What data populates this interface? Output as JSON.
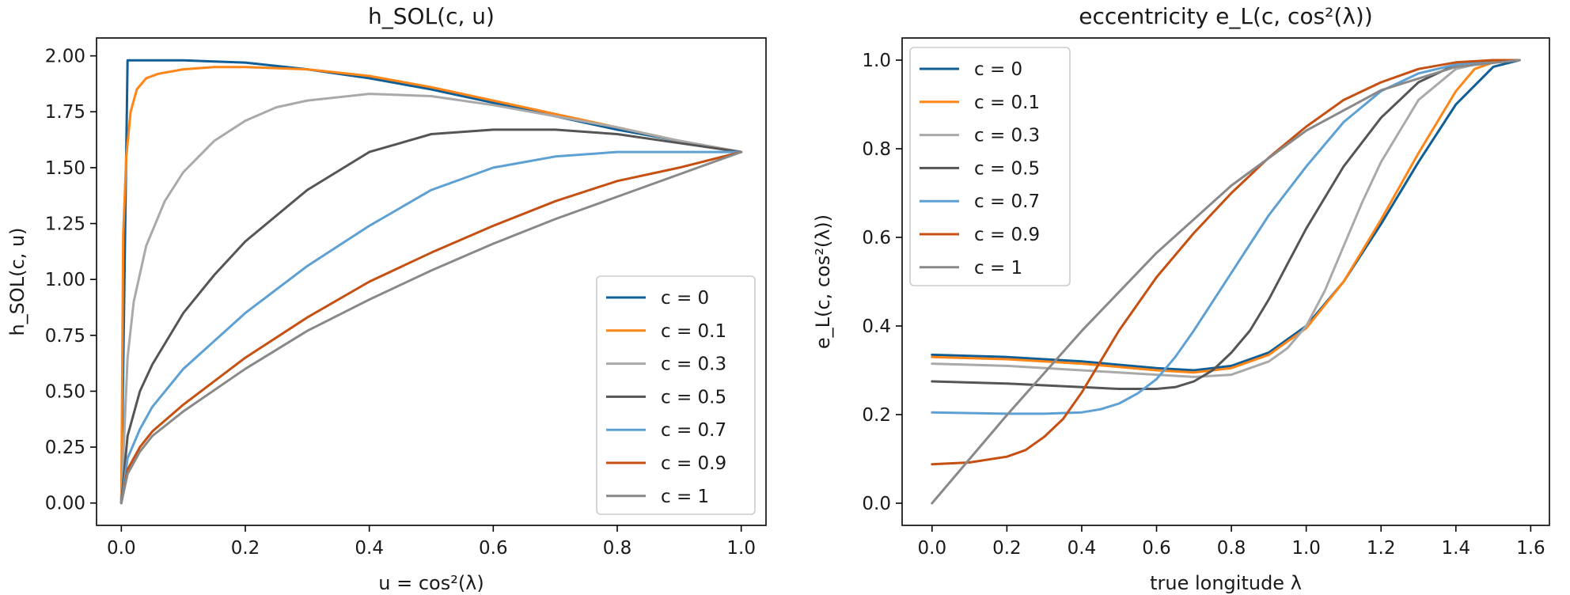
{
  "chart_data": [
    {
      "type": "line",
      "title": "h_SOL(c, u)",
      "xlabel": "u = cos²(λ)",
      "ylabel": "h_SOL(c, u)",
      "xlim": [
        -0.04,
        1.04
      ],
      "ylim": [
        -0.1,
        2.08
      ],
      "xticks": [
        0.0,
        0.2,
        0.4,
        0.6,
        0.8,
        1.0
      ],
      "xtick_labels": [
        "0.0",
        "0.2",
        "0.4",
        "0.6",
        "0.8",
        "1.0"
      ],
      "yticks": [
        0.0,
        0.25,
        0.5,
        0.75,
        1.0,
        1.25,
        1.5,
        1.75,
        2.0
      ],
      "ytick_labels": [
        "0.00",
        "0.25",
        "0.50",
        "0.75",
        "1.00",
        "1.25",
        "1.50",
        "1.75",
        "2.00"
      ],
      "legend_position": "lower right",
      "series": [
        {
          "name": "c = 0",
          "color": "#0f5e95",
          "x": [
            0,
            0.01,
            0.05,
            0.1,
            0.2,
            0.3,
            0.4,
            0.5,
            0.6,
            0.7,
            0.8,
            0.9,
            1.0
          ],
          "y": [
            0,
            1.98,
            1.98,
            1.98,
            1.97,
            1.94,
            1.9,
            1.85,
            1.79,
            1.73,
            1.67,
            1.62,
            1.57
          ]
        },
        {
          "name": "c = 0.1",
          "color": "#ff8517",
          "x": [
            0,
            0.003,
            0.008,
            0.015,
            0.025,
            0.04,
            0.06,
            0.1,
            0.15,
            0.2,
            0.3,
            0.4,
            0.5,
            0.6,
            0.7,
            0.8,
            0.9,
            1.0
          ],
          "y": [
            0,
            1.2,
            1.55,
            1.75,
            1.85,
            1.9,
            1.92,
            1.94,
            1.95,
            1.95,
            1.94,
            1.91,
            1.86,
            1.8,
            1.74,
            1.68,
            1.62,
            1.57
          ]
        },
        {
          "name": "c = 0.3",
          "color": "#a9a9a9",
          "x": [
            0,
            0.01,
            0.02,
            0.04,
            0.07,
            0.1,
            0.15,
            0.2,
            0.25,
            0.3,
            0.4,
            0.5,
            0.6,
            0.7,
            0.8,
            0.9,
            1.0
          ],
          "y": [
            0,
            0.65,
            0.9,
            1.15,
            1.35,
            1.48,
            1.62,
            1.71,
            1.77,
            1.8,
            1.83,
            1.82,
            1.78,
            1.73,
            1.68,
            1.62,
            1.57
          ]
        },
        {
          "name": "c = 0.5",
          "color": "#555555",
          "x": [
            0,
            0.01,
            0.03,
            0.05,
            0.1,
            0.15,
            0.2,
            0.3,
            0.4,
            0.5,
            0.6,
            0.7,
            0.8,
            0.9,
            1.0
          ],
          "y": [
            0,
            0.3,
            0.5,
            0.62,
            0.85,
            1.02,
            1.17,
            1.4,
            1.57,
            1.65,
            1.67,
            1.67,
            1.65,
            1.61,
            1.57
          ]
        },
        {
          "name": "c = 0.7",
          "color": "#5da0d3",
          "x": [
            0,
            0.01,
            0.03,
            0.05,
            0.1,
            0.2,
            0.3,
            0.4,
            0.5,
            0.6,
            0.7,
            0.8,
            0.9,
            1.0
          ],
          "y": [
            0,
            0.2,
            0.33,
            0.43,
            0.6,
            0.85,
            1.06,
            1.24,
            1.4,
            1.5,
            1.55,
            1.57,
            1.57,
            1.57
          ]
        },
        {
          "name": "c = 0.9",
          "color": "#c55012",
          "x": [
            0,
            0.01,
            0.03,
            0.05,
            0.1,
            0.2,
            0.3,
            0.4,
            0.5,
            0.6,
            0.7,
            0.8,
            0.9,
            1.0
          ],
          "y": [
            0,
            0.15,
            0.25,
            0.32,
            0.44,
            0.65,
            0.83,
            0.99,
            1.12,
            1.24,
            1.35,
            1.44,
            1.5,
            1.57
          ]
        },
        {
          "name": "c = 1",
          "color": "#898989",
          "x": [
            0,
            0.01,
            0.03,
            0.05,
            0.1,
            0.2,
            0.3,
            0.4,
            0.5,
            0.6,
            0.7,
            0.8,
            0.9,
            1.0
          ],
          "y": [
            0,
            0.13,
            0.23,
            0.3,
            0.41,
            0.6,
            0.77,
            0.91,
            1.04,
            1.16,
            1.27,
            1.37,
            1.47,
            1.57
          ]
        }
      ]
    },
    {
      "type": "line",
      "title": "eccentricity e_L(c, cos²(λ))",
      "xlabel": "true longitude λ",
      "ylabel": "e_L(c, cos²(λ))",
      "xlim": [
        -0.08,
        1.65
      ],
      "ylim": [
        -0.05,
        1.05
      ],
      "xticks": [
        0.0,
        0.2,
        0.4,
        0.6,
        0.8,
        1.0,
        1.2,
        1.4,
        1.6
      ],
      "xtick_labels": [
        "0.0",
        "0.2",
        "0.4",
        "0.6",
        "0.8",
        "1.0",
        "1.2",
        "1.4",
        "1.6"
      ],
      "yticks": [
        0.0,
        0.2,
        0.4,
        0.6,
        0.8,
        1.0
      ],
      "ytick_labels": [
        "0.0",
        "0.2",
        "0.4",
        "0.6",
        "0.8",
        "1.0"
      ],
      "legend_position": "upper left",
      "series": [
        {
          "name": "c = 0",
          "color": "#0f5e95",
          "x": [
            0,
            0.2,
            0.4,
            0.6,
            0.7,
            0.8,
            0.9,
            1.0,
            1.1,
            1.2,
            1.3,
            1.4,
            1.5,
            1.57
          ],
          "y": [
            0.335,
            0.33,
            0.32,
            0.305,
            0.3,
            0.31,
            0.34,
            0.4,
            0.5,
            0.63,
            0.77,
            0.9,
            0.985,
            1.0
          ]
        },
        {
          "name": "c = 0.1",
          "color": "#ff8517",
          "x": [
            0,
            0.2,
            0.4,
            0.6,
            0.7,
            0.8,
            0.9,
            1.0,
            1.1,
            1.2,
            1.3,
            1.4,
            1.45,
            1.5,
            1.57
          ],
          "y": [
            0.33,
            0.325,
            0.315,
            0.3,
            0.295,
            0.305,
            0.335,
            0.395,
            0.5,
            0.64,
            0.79,
            0.93,
            0.98,
            0.995,
            1.0
          ]
        },
        {
          "name": "c = 0.3",
          "color": "#a9a9a9",
          "x": [
            0,
            0.2,
            0.4,
            0.6,
            0.7,
            0.8,
            0.9,
            0.95,
            1.0,
            1.05,
            1.1,
            1.15,
            1.2,
            1.3,
            1.4,
            1.5,
            1.57
          ],
          "y": [
            0.315,
            0.31,
            0.3,
            0.29,
            0.285,
            0.29,
            0.32,
            0.35,
            0.4,
            0.48,
            0.58,
            0.68,
            0.77,
            0.91,
            0.98,
            1.0,
            1.0
          ]
        },
        {
          "name": "c = 0.5",
          "color": "#555555",
          "x": [
            0,
            0.2,
            0.4,
            0.5,
            0.6,
            0.65,
            0.7,
            0.75,
            0.8,
            0.85,
            0.9,
            0.95,
            1.0,
            1.1,
            1.2,
            1.3,
            1.4,
            1.5,
            1.57
          ],
          "y": [
            0.275,
            0.27,
            0.262,
            0.258,
            0.258,
            0.262,
            0.275,
            0.3,
            0.34,
            0.39,
            0.46,
            0.54,
            0.62,
            0.76,
            0.87,
            0.95,
            0.99,
            1.0,
            1.0
          ]
        },
        {
          "name": "c = 0.7",
          "color": "#5da0d3",
          "x": [
            0,
            0.2,
            0.3,
            0.4,
            0.45,
            0.5,
            0.55,
            0.6,
            0.65,
            0.7,
            0.8,
            0.9,
            1.0,
            1.1,
            1.2,
            1.3,
            1.4,
            1.5,
            1.57
          ],
          "y": [
            0.205,
            0.202,
            0.202,
            0.205,
            0.212,
            0.225,
            0.248,
            0.28,
            0.33,
            0.39,
            0.52,
            0.65,
            0.76,
            0.86,
            0.93,
            0.97,
            0.99,
            1.0,
            1.0
          ]
        },
        {
          "name": "c = 0.9",
          "color": "#c55012",
          "x": [
            0,
            0.1,
            0.2,
            0.25,
            0.3,
            0.35,
            0.4,
            0.45,
            0.5,
            0.6,
            0.7,
            0.8,
            0.9,
            1.0,
            1.1,
            1.2,
            1.3,
            1.4,
            1.5,
            1.57
          ],
          "y": [
            0.088,
            0.092,
            0.105,
            0.12,
            0.15,
            0.19,
            0.25,
            0.32,
            0.39,
            0.51,
            0.61,
            0.7,
            0.78,
            0.85,
            0.91,
            0.95,
            0.98,
            0.995,
            1.0,
            1.0
          ]
        },
        {
          "name": "c = 1",
          "color": "#898989",
          "x": [
            0,
            0.2,
            0.4,
            0.6,
            0.8,
            1.0,
            1.2,
            1.4,
            1.57
          ],
          "y": [
            0.0,
            0.199,
            0.389,
            0.565,
            0.717,
            0.841,
            0.932,
            0.985,
            1.0
          ]
        }
      ]
    }
  ]
}
